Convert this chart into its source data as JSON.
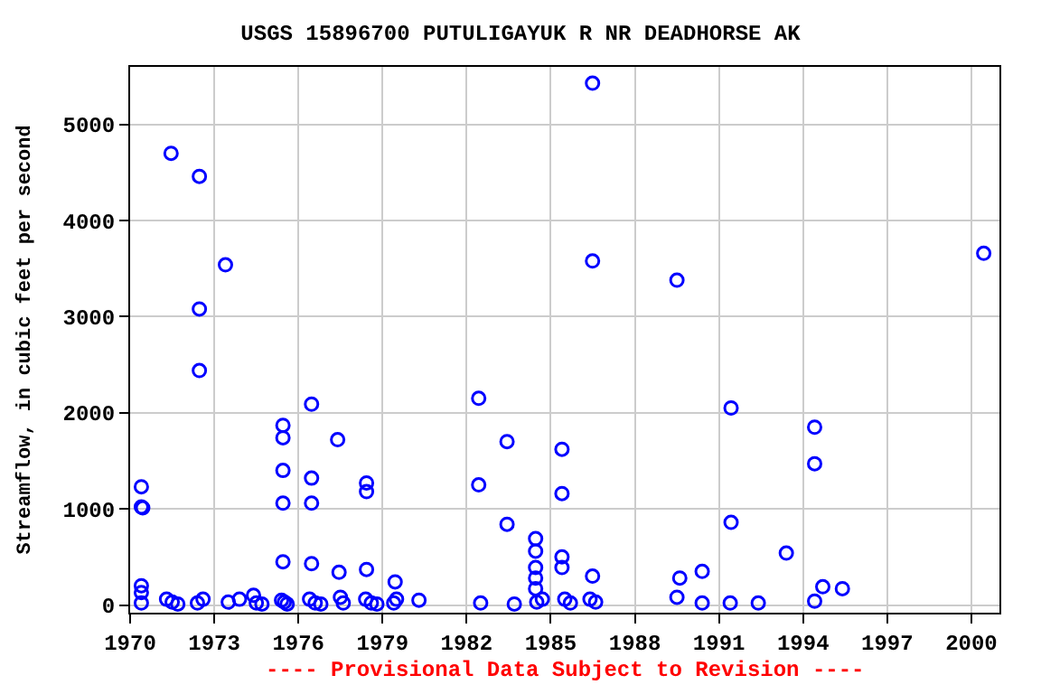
{
  "chart_data": {
    "type": "scatter",
    "title": "USGS 15896700 PUTULIGAYUK R NR DEADHORSE AK",
    "ylabel": "Streamflow, in cubic feet per second",
    "annotations": [
      "---- Provisional Data Subject to Revision ----"
    ],
    "series": [
      {
        "color": "#0000ff",
        "x": [
          1970.4,
          1970.4,
          1970.45,
          1970.4,
          1970.4,
          1970.4,
          1971.46,
          1972.47,
          1972.47,
          1972.47,
          1973.4,
          1975.45,
          1975.45,
          1975.45,
          1975.45,
          1975.45,
          1976.47,
          1976.47,
          1976.47,
          1976.47,
          1977.4,
          1978.43,
          1978.43,
          1978.43,
          1977.45,
          1979.45,
          1982.43,
          1982.43,
          1983.44,
          1983.44,
          1984.46,
          1984.46,
          1984.46,
          1984.46,
          1984.46,
          1985.4,
          1985.4,
          1985.4,
          1985.4,
          1986.49,
          1986.49,
          1986.49,
          1989.5,
          1989.6,
          1989.5,
          1990.4,
          1991.43,
          1991.43,
          1993.4,
          1994.41,
          1994.41,
          1994.41,
          1994.7,
          1995.4,
          2000.44,
          1971.3,
          1971.5,
          1971.7,
          1972.4,
          1972.6,
          1973.5,
          1973.9,
          1974.4,
          1974.5,
          1974.7,
          1975.4,
          1975.5,
          1975.6,
          1976.4,
          1976.6,
          1976.8,
          1977.5,
          1977.6,
          1978.4,
          1978.6,
          1978.8,
          1979.4,
          1979.5,
          1980.3,
          1982.5,
          1983.7,
          1984.5,
          1984.7,
          1985.5,
          1985.7,
          1986.4,
          1986.6,
          1990.4,
          1991.4,
          1992.4
        ],
        "values": [
          1230,
          1020,
          1010,
          200,
          130,
          20,
          4700,
          4460,
          3080,
          2440,
          3540,
          1870,
          1740,
          1400,
          1060,
          450,
          2090,
          1320,
          1060,
          430,
          1720,
          1270,
          1180,
          370,
          340,
          240,
          2150,
          1250,
          1700,
          840,
          690,
          560,
          390,
          280,
          170,
          1620,
          1160,
          500,
          390,
          5430,
          3580,
          300,
          3380,
          280,
          80,
          350,
          2050,
          860,
          540,
          1850,
          1470,
          40,
          190,
          170,
          3660,
          60,
          30,
          10,
          20,
          60,
          30,
          60,
          100,
          20,
          10,
          50,
          30,
          10,
          60,
          20,
          10,
          80,
          20,
          60,
          20,
          10,
          20,
          60,
          50,
          20,
          10,
          30,
          60,
          60,
          20,
          60,
          30,
          20,
          20,
          20
        ]
      }
    ],
    "xlim": [
      1970,
      2001
    ],
    "xticks": [
      1970,
      1973,
      1976,
      1979,
      1982,
      1985,
      1988,
      1991,
      1994,
      1997,
      2000
    ],
    "ylim": [
      -80,
      5600
    ],
    "yticks": [
      0,
      1000,
      2000,
      3000,
      4000,
      5000
    ],
    "grid": true,
    "marker": "circle",
    "legend": false
  }
}
